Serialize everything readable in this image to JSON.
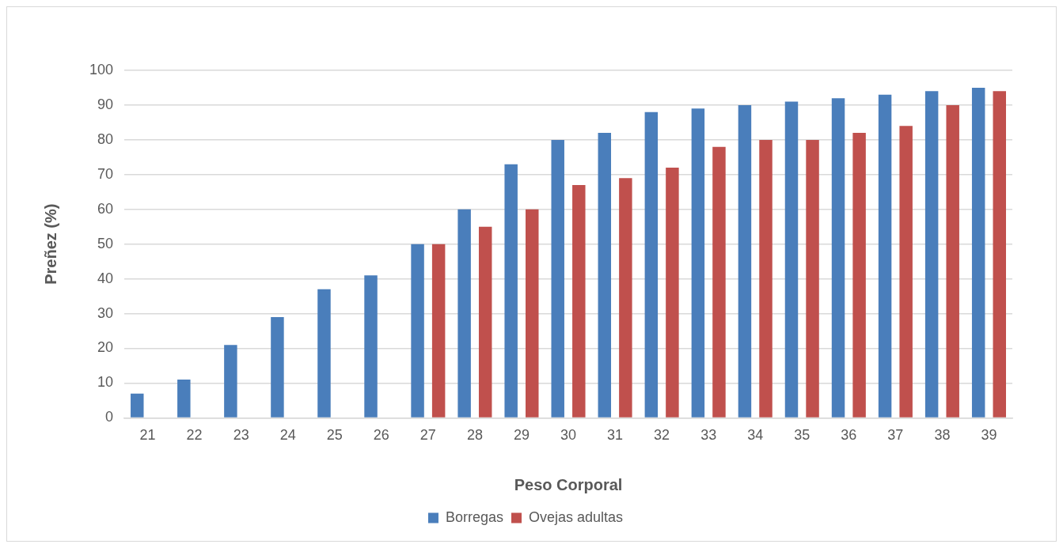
{
  "chart_data": {
    "type": "bar",
    "xlabel": "Peso Corporal",
    "ylabel": "Preñez (%)",
    "categories": [
      "21",
      "22",
      "23",
      "24",
      "25",
      "26",
      "27",
      "28",
      "29",
      "30",
      "31",
      "32",
      "33",
      "34",
      "35",
      "36",
      "37",
      "38",
      "39"
    ],
    "series": [
      {
        "name": "Borregas",
        "color": "#4a7ebb",
        "values": [
          7,
          11,
          21,
          29,
          37,
          41,
          50,
          60,
          73,
          80,
          82,
          88,
          89,
          90,
          91,
          92,
          93,
          94,
          95
        ]
      },
      {
        "name": "Ovejas adultas",
        "color": "#c0504d",
        "values": [
          null,
          null,
          null,
          null,
          null,
          null,
          50,
          55,
          60,
          67,
          69,
          72,
          78,
          80,
          80,
          82,
          84,
          90,
          94
        ]
      }
    ],
    "ylim": [
      0,
      100
    ],
    "yticks": [
      0,
      10,
      20,
      30,
      40,
      50,
      60,
      70,
      80,
      90,
      100
    ],
    "grid": "y",
    "legend": "bottom"
  }
}
